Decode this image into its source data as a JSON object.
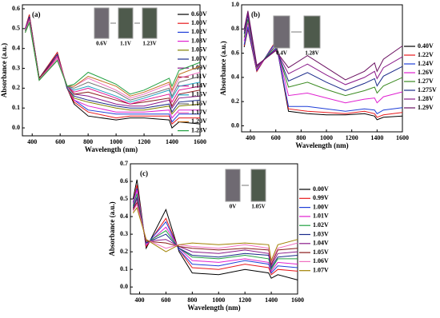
{
  "chart_data": [
    {
      "type": "line",
      "panel_label": "(a)",
      "x_label": "Wavelength (nm)",
      "y_label": "Absorbance (a.u.)",
      "inset_labels": [
        "0.6V",
        "1.1V",
        "1.23V"
      ],
      "x": [
        350,
        380,
        450,
        580,
        650,
        700,
        800,
        1000,
        1100,
        1200,
        1380,
        1400,
        1450,
        1600
      ],
      "xlim": [
        330,
        1600
      ],
      "xticks": [
        400,
        600,
        800,
        1000,
        1200,
        1400,
        1600
      ],
      "ylim": [
        -0.04,
        0.62
      ],
      "yticks": [
        {
          "value": 0,
          "label": "0.0"
        },
        0.1,
        0.2,
        0.3,
        0.4,
        0.5,
        0.6
      ],
      "series": [
        {
          "name": "0.60V",
          "color": "#000000",
          "values": [
            0.5,
            0.57,
            0.25,
            0.38,
            0.2,
            0.12,
            0.06,
            0.04,
            0.05,
            0.05,
            0.04,
            0.0,
            0.03,
            0.02
          ]
        },
        {
          "name": "1.00V",
          "color": "#e8191c",
          "values": [
            0.5,
            0.57,
            0.25,
            0.38,
            0.2,
            0.13,
            0.08,
            0.05,
            0.06,
            0.06,
            0.06,
            0.02,
            0.05,
            0.05
          ]
        },
        {
          "name": "1.02V",
          "color": "#1f3fd8",
          "values": [
            0.5,
            0.56,
            0.25,
            0.37,
            0.2,
            0.14,
            0.09,
            0.07,
            0.07,
            0.07,
            0.07,
            0.03,
            0.07,
            0.07
          ]
        },
        {
          "name": "1.03V",
          "color": "#e020d0",
          "values": [
            0.5,
            0.56,
            0.25,
            0.37,
            0.2,
            0.14,
            0.11,
            0.08,
            0.08,
            0.08,
            0.09,
            0.05,
            0.09,
            0.09
          ]
        },
        {
          "name": "1.05V",
          "color": "#808000",
          "values": [
            0.49,
            0.56,
            0.25,
            0.37,
            0.2,
            0.15,
            0.13,
            0.1,
            0.09,
            0.09,
            0.11,
            0.07,
            0.11,
            0.12
          ]
        },
        {
          "name": "1.07V",
          "color": "#1a2a8a",
          "values": [
            0.49,
            0.56,
            0.25,
            0.37,
            0.2,
            0.16,
            0.14,
            0.11,
            0.1,
            0.1,
            0.12,
            0.08,
            0.13,
            0.14
          ]
        },
        {
          "name": "1.09V",
          "color": "#8a1a8a",
          "values": [
            0.49,
            0.55,
            0.25,
            0.36,
            0.21,
            0.17,
            0.16,
            0.12,
            0.11,
            0.11,
            0.14,
            0.1,
            0.15,
            0.16
          ]
        },
        {
          "name": "1.11V",
          "color": "#8a1a1a",
          "values": [
            0.49,
            0.55,
            0.25,
            0.36,
            0.21,
            0.17,
            0.18,
            0.14,
            0.12,
            0.13,
            0.15,
            0.11,
            0.17,
            0.19
          ]
        },
        {
          "name": "1.14V",
          "color": "#e01090",
          "values": [
            0.49,
            0.55,
            0.24,
            0.36,
            0.21,
            0.18,
            0.2,
            0.15,
            0.12,
            0.14,
            0.17,
            0.13,
            0.19,
            0.21
          ]
        },
        {
          "name": "1.15V",
          "color": "#20a0c0",
          "values": [
            0.49,
            0.54,
            0.24,
            0.35,
            0.21,
            0.19,
            0.21,
            0.16,
            0.13,
            0.15,
            0.19,
            0.15,
            0.21,
            0.23
          ]
        },
        {
          "name": "1.16V",
          "color": "#707070",
          "values": [
            0.49,
            0.54,
            0.24,
            0.35,
            0.21,
            0.2,
            0.23,
            0.18,
            0.14,
            0.16,
            0.2,
            0.16,
            0.23,
            0.26
          ]
        },
        {
          "name": "1.17V",
          "color": "#f070c0",
          "values": [
            0.48,
            0.54,
            0.24,
            0.35,
            0.21,
            0.21,
            0.25,
            0.19,
            0.15,
            0.17,
            0.22,
            0.18,
            0.25,
            0.28
          ]
        },
        {
          "name": "1.20V",
          "color": "#c07020",
          "values": [
            0.48,
            0.53,
            0.24,
            0.34,
            0.21,
            0.21,
            0.26,
            0.21,
            0.16,
            0.18,
            0.23,
            0.19,
            0.27,
            0.31
          ]
        },
        {
          "name": "1.23V",
          "color": "#20a040",
          "values": [
            0.48,
            0.53,
            0.24,
            0.34,
            0.21,
            0.22,
            0.28,
            0.22,
            0.17,
            0.19,
            0.25,
            0.21,
            0.29,
            0.33
          ]
        }
      ]
    },
    {
      "type": "line",
      "panel_label": "(b)",
      "x_label": "Wavelength (nm)",
      "y_label": "Absorbance (a.u.)",
      "inset_labels": [
        "0.4V",
        "1.28V"
      ],
      "x": [
        350,
        380,
        450,
        600,
        700,
        850,
        1000,
        1150,
        1300,
        1380,
        1400,
        1450,
        1600
      ],
      "xlim": [
        330,
        1600
      ],
      "xticks": [
        400,
        600,
        800,
        1000,
        1200,
        1400,
        1600
      ],
      "ylim": [
        -0.05,
        1.0
      ],
      "yticks": [
        {
          "value": 0,
          "label": "0.0"
        },
        0.2,
        0.4,
        0.6,
        0.8,
        {
          "value": 1,
          "label": "1.0"
        }
      ],
      "series": [
        {
          "name": "0.40V",
          "color": "#000000",
          "values": [
            0.65,
            0.8,
            0.45,
            0.7,
            0.12,
            0.1,
            0.09,
            0.09,
            0.1,
            0.08,
            0.05,
            0.07,
            0.08
          ]
        },
        {
          "name": "1.22V",
          "color": "#e8191c",
          "values": [
            0.66,
            0.81,
            0.45,
            0.7,
            0.14,
            0.12,
            0.11,
            0.1,
            0.12,
            0.1,
            0.07,
            0.09,
            0.11
          ]
        },
        {
          "name": "1.24V",
          "color": "#1f3fd8",
          "values": [
            0.67,
            0.82,
            0.46,
            0.69,
            0.16,
            0.16,
            0.14,
            0.12,
            0.14,
            0.13,
            0.1,
            0.13,
            0.15
          ]
        },
        {
          "name": "1.26V",
          "color": "#e020d0",
          "values": [
            0.7,
            0.85,
            0.47,
            0.67,
            0.25,
            0.27,
            0.23,
            0.19,
            0.22,
            0.23,
            0.19,
            0.24,
            0.28
          ]
        },
        {
          "name": "1.27V",
          "color": "#3a8a20",
          "values": [
            0.73,
            0.88,
            0.48,
            0.66,
            0.32,
            0.36,
            0.3,
            0.25,
            0.29,
            0.32,
            0.27,
            0.33,
            0.4
          ]
        },
        {
          "name": "1.275V",
          "color": "#1a2a8a",
          "values": [
            0.76,
            0.91,
            0.49,
            0.64,
            0.37,
            0.44,
            0.36,
            0.29,
            0.35,
            0.39,
            0.33,
            0.41,
            0.49
          ]
        },
        {
          "name": "1.28V",
          "color": "#8a1a8a",
          "values": [
            0.78,
            0.93,
            0.49,
            0.63,
            0.43,
            0.51,
            0.42,
            0.34,
            0.4,
            0.45,
            0.39,
            0.48,
            0.57
          ]
        },
        {
          "name": "1.29V",
          "color": "#6a1060",
          "values": [
            0.8,
            0.95,
            0.5,
            0.62,
            0.48,
            0.58,
            0.48,
            0.38,
            0.45,
            0.52,
            0.45,
            0.55,
            0.66
          ]
        }
      ]
    },
    {
      "type": "line",
      "panel_label": "(c)",
      "x_label": "Wavelength (nm)",
      "y_label": "Absorbance (a.u.)",
      "inset_labels": [
        "0V",
        "1.05V"
      ],
      "x": [
        350,
        380,
        450,
        600,
        700,
        800,
        1000,
        1200,
        1380,
        1400,
        1450,
        1600
      ],
      "xlim": [
        330,
        1600
      ],
      "xticks": [
        400,
        600,
        800,
        1000,
        1200,
        1400,
        1600
      ],
      "ylim": [
        -0.04,
        0.7
      ],
      "yticks": [
        {
          "value": 0,
          "label": "0.0"
        },
        0.1,
        0.2,
        0.3,
        0.4,
        0.5,
        0.6,
        0.7
      ],
      "series": [
        {
          "name": "0.00V",
          "color": "#000000",
          "values": [
            0.5,
            0.61,
            0.22,
            0.44,
            0.2,
            0.08,
            0.07,
            0.1,
            0.08,
            0.05,
            0.07,
            0.04
          ]
        },
        {
          "name": "0.99V",
          "color": "#e8191c",
          "values": [
            0.48,
            0.58,
            0.23,
            0.39,
            0.21,
            0.11,
            0.1,
            0.13,
            0.11,
            0.07,
            0.1,
            0.09
          ]
        },
        {
          "name": "1.00V",
          "color": "#1f3fd8",
          "values": [
            0.48,
            0.56,
            0.24,
            0.37,
            0.21,
            0.13,
            0.12,
            0.15,
            0.13,
            0.08,
            0.12,
            0.11
          ]
        },
        {
          "name": "1.01V",
          "color": "#e020d0",
          "values": [
            0.47,
            0.55,
            0.24,
            0.34,
            0.22,
            0.15,
            0.14,
            0.16,
            0.14,
            0.09,
            0.14,
            0.13
          ]
        },
        {
          "name": "1.02V",
          "color": "#20a040",
          "values": [
            0.46,
            0.53,
            0.25,
            0.32,
            0.22,
            0.17,
            0.16,
            0.18,
            0.16,
            0.1,
            0.16,
            0.16
          ]
        },
        {
          "name": "1.03V",
          "color": "#1a2a8a",
          "values": [
            0.45,
            0.51,
            0.25,
            0.3,
            0.22,
            0.18,
            0.17,
            0.19,
            0.18,
            0.11,
            0.17,
            0.18
          ]
        },
        {
          "name": "1.04V",
          "color": "#8a1a8a",
          "values": [
            0.44,
            0.5,
            0.26,
            0.27,
            0.23,
            0.2,
            0.19,
            0.21,
            0.19,
            0.12,
            0.19,
            0.2
          ]
        },
        {
          "name": "1.05V",
          "color": "#8a1a1a",
          "values": [
            0.44,
            0.48,
            0.26,
            0.25,
            0.23,
            0.22,
            0.21,
            0.22,
            0.21,
            0.13,
            0.21,
            0.22
          ]
        },
        {
          "name": "1.06V",
          "color": "#f070c0",
          "values": [
            0.43,
            0.47,
            0.27,
            0.22,
            0.24,
            0.23,
            0.22,
            0.24,
            0.22,
            0.14,
            0.22,
            0.25
          ]
        },
        {
          "name": "1.07V",
          "color": "#a08000",
          "values": [
            0.42,
            0.45,
            0.27,
            0.2,
            0.24,
            0.25,
            0.24,
            0.25,
            0.24,
            0.15,
            0.24,
            0.27
          ]
        }
      ]
    }
  ]
}
